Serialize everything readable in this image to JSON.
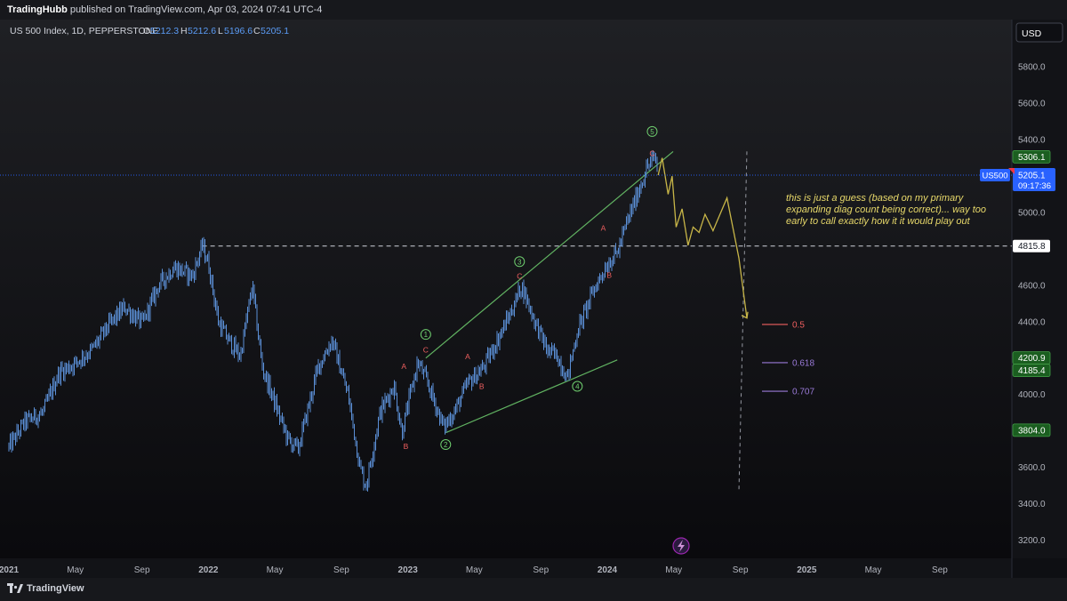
{
  "header": {
    "user": "TradingHubb",
    "published": " published on TradingView.com, Apr 03, 2024 07:41 UTC-4"
  },
  "legend": {
    "symbol": "US 500 Index, 1D, PEPPERSTONE",
    "o_label": "O",
    "o_value": "5212.3",
    "h_label": "H",
    "h_value": "5212.6",
    "l_label": "L",
    "l_value": "5196.6",
    "c_label": "C",
    "c_value": "5205.1"
  },
  "currency_button": "USD",
  "footer": {
    "brand": "TradingView"
  },
  "colors": {
    "background": "#0e0f13",
    "candles": "#5b8fd6",
    "wave_count": "#6fcf6f",
    "abc_labels": "#ef5f5f",
    "projection": "#c8b648",
    "price_badge": "#2962ff",
    "last_marker": "#f23645"
  },
  "chart_data": {
    "type": "line",
    "title": "US 500 Index, 1D, PEPPERSTONE",
    "ylabel": "USD",
    "ylim": [
      3100,
      6060
    ],
    "x_ticks": [
      "2021",
      "May",
      "Sep",
      "2022",
      "May",
      "Sep",
      "2023",
      "May",
      "Sep",
      "2024",
      "May",
      "Sep",
      "2025",
      "May",
      "Sep"
    ],
    "x_tick_values": [
      2021.0,
      2021.333,
      2021.667,
      2022.0,
      2022.333,
      2022.667,
      2023.0,
      2023.333,
      2023.667,
      2024.0,
      2024.333,
      2024.667,
      2025.0,
      2025.333,
      2025.667
    ],
    "x_bold": [
      "2021",
      "2022",
      "2023",
      "2024",
      "2025"
    ],
    "y_ticks": [
      3200,
      3400,
      3600,
      3800,
      4000,
      4200,
      4400,
      4600,
      4800,
      5000,
      5200,
      5400,
      5600,
      5800
    ],
    "price_series": {
      "x": [
        2021.0,
        2021.08,
        2021.17,
        2021.25,
        2021.33,
        2021.42,
        2021.5,
        2021.58,
        2021.67,
        2021.75,
        2021.83,
        2021.92,
        2021.97,
        2022.0,
        2022.05,
        2022.1,
        2022.16,
        2022.22,
        2022.27,
        2022.35,
        2022.4,
        2022.45,
        2022.55,
        2022.62,
        2022.7,
        2022.76,
        2022.79,
        2022.86,
        2022.93,
        2022.97,
        2023.05,
        2023.1,
        2023.18,
        2023.24,
        2023.3,
        2023.38,
        2023.45,
        2023.52,
        2023.57,
        2023.63,
        2023.7,
        2023.75,
        2023.8,
        2023.85,
        2023.93,
        2024.0,
        2024.05,
        2024.1,
        2024.15,
        2024.2,
        2024.24,
        2024.255
      ],
      "y": [
        3710,
        3850,
        3900,
        4120,
        4170,
        4250,
        4380,
        4480,
        4390,
        4600,
        4700,
        4650,
        4818,
        4720,
        4400,
        4300,
        4210,
        4600,
        4150,
        3900,
        3750,
        3700,
        4150,
        4300,
        4000,
        3600,
        3495,
        3900,
        4050,
        3790,
        4180,
        4060,
        3820,
        3920,
        4060,
        4150,
        4300,
        4460,
        4600,
        4420,
        4240,
        4210,
        4090,
        4350,
        4570,
        4720,
        4780,
        4950,
        5100,
        5250,
        5306,
        5205
      ]
    },
    "last_price": "5205.1",
    "countdown": "09:17:36",
    "symbol_badge": "US500",
    "price_labels": [
      {
        "value": 5306.1,
        "text": "5306.1"
      },
      {
        "value": 4815.8,
        "text": "4815.8"
      },
      {
        "value": 4200.9,
        "text": "4200.9"
      },
      {
        "value": 4185.4,
        "text": "4185.4"
      },
      {
        "value": 3804.0,
        "text": "3804.0"
      }
    ],
    "horizontal_line": {
      "value": 4815.8,
      "x_start": 2021.97
    },
    "wave_labels": [
      {
        "text": "1",
        "x": 2023.09,
        "y": 4330
      },
      {
        "text": "2",
        "x": 2023.19,
        "y": 3725
      },
      {
        "text": "3",
        "x": 2023.56,
        "y": 4730
      },
      {
        "text": "4",
        "x": 2023.85,
        "y": 4045
      },
      {
        "text": "5",
        "x": 2024.225,
        "y": 5445
      }
    ],
    "abc_labels": [
      {
        "text": "A",
        "x": 2022.98,
        "y": 4155
      },
      {
        "text": "B",
        "x": 2022.99,
        "y": 3715
      },
      {
        "text": "C",
        "x": 2023.09,
        "y": 4245
      },
      {
        "text": "A",
        "x": 2023.3,
        "y": 4210
      },
      {
        "text": "B",
        "x": 2023.37,
        "y": 4045
      },
      {
        "text": "C",
        "x": 2023.56,
        "y": 4650
      },
      {
        "text": "A",
        "x": 2023.98,
        "y": 4915
      },
      {
        "text": "B",
        "x": 2024.01,
        "y": 4655
      },
      {
        "text": "C",
        "x": 2024.225,
        "y": 5325
      }
    ],
    "channel": {
      "upper": [
        [
          2023.09,
          4200
        ],
        [
          2024.33,
          5335
        ]
      ],
      "lower": [
        [
          2023.19,
          3790
        ],
        [
          2024.05,
          4190
        ]
      ]
    },
    "projection": {
      "x": [
        2024.255,
        2024.275,
        2024.305,
        2024.325,
        2024.345,
        2024.375,
        2024.405,
        2024.43,
        2024.46,
        2024.49,
        2024.53,
        2024.6,
        2024.66,
        2024.7
      ],
      "y": [
        5205,
        5300,
        5100,
        5200,
        4920,
        5020,
        4820,
        4920,
        4890,
        4990,
        4900,
        5080,
        4750,
        4420
      ]
    },
    "fib_levels": [
      {
        "label": "0.5",
        "value": 4385,
        "color": "#ef5f5f"
      },
      {
        "label": "0.618",
        "value": 4175,
        "color": "#9a7ad8"
      },
      {
        "label": "0.707",
        "value": 4018,
        "color": "#9a7ad8"
      }
    ],
    "dashed_vertical": [
      [
        2024.66,
        3480
      ],
      [
        2024.7,
        5345
      ]
    ],
    "annotation": [
      "this is just a guess (based on my primary",
      "expanding diag count being correct)... way too",
      "early to call exactly how it it would play out"
    ]
  }
}
